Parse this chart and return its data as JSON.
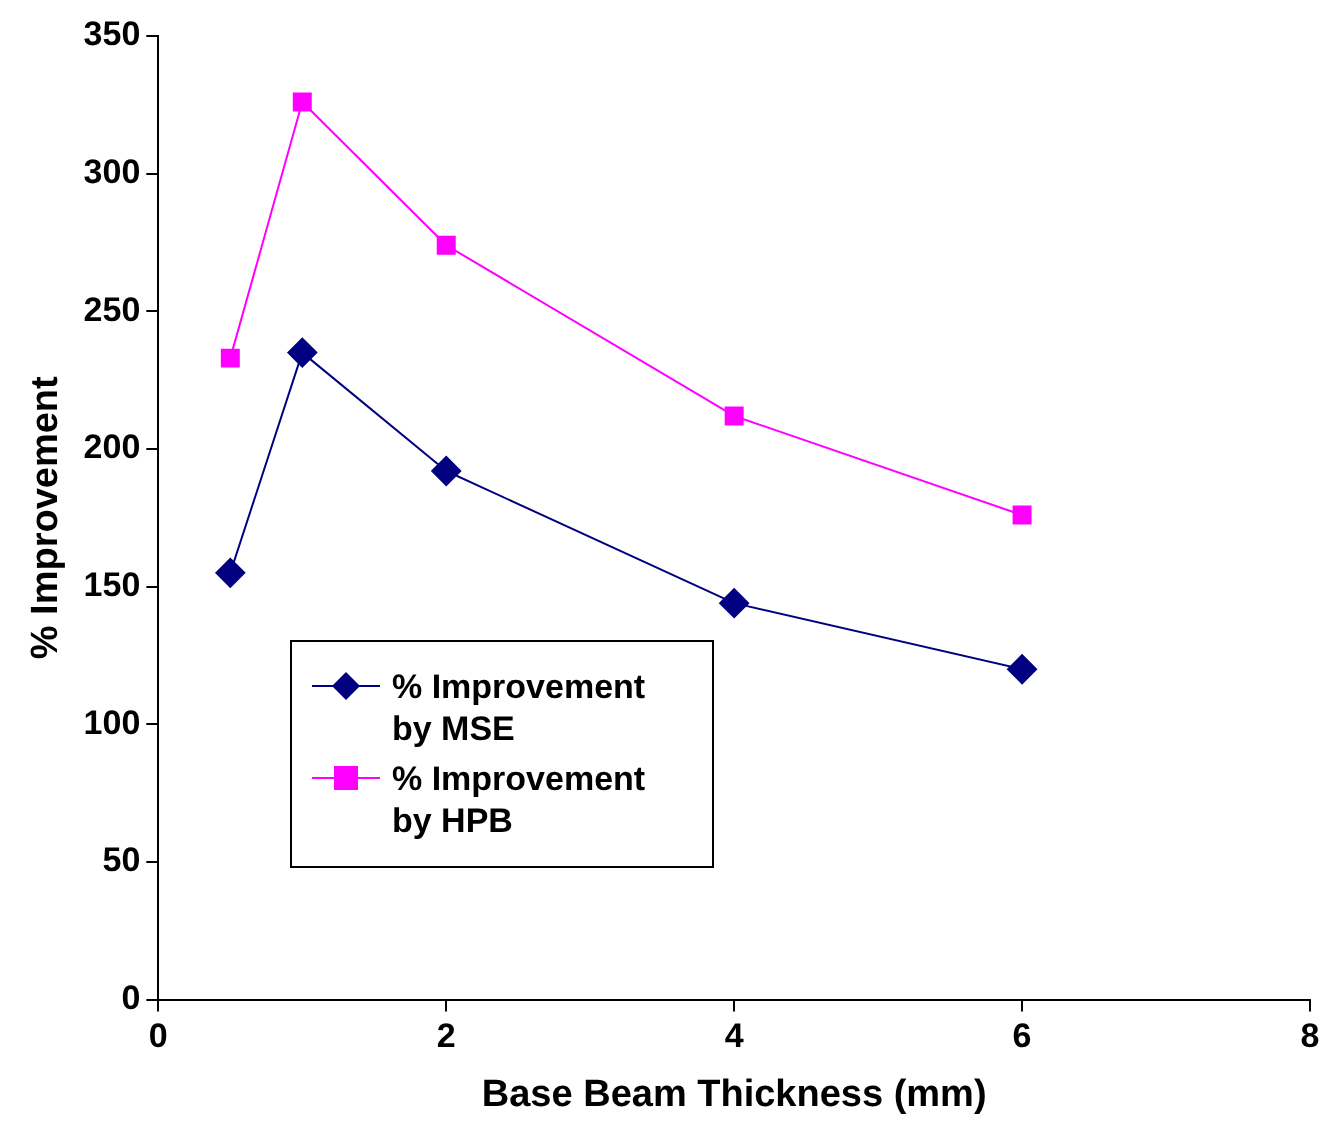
{
  "chart_data": {
    "type": "line",
    "xlabel": "Base Beam Thickness (mm)",
    "ylabel": "% Improvement",
    "x": [
      0.5,
      1,
      2,
      4,
      6
    ],
    "series": [
      {
        "name": "% Improvement by MSE",
        "color": "#000080",
        "marker": "diamond",
        "values": [
          155,
          235,
          192,
          144,
          120
        ]
      },
      {
        "name": "% Improvement by HPB",
        "color": "#ff00ff",
        "marker": "square",
        "values": [
          233,
          326,
          274,
          212,
          176
        ]
      }
    ],
    "xlim": [
      0,
      8
    ],
    "xticks": [
      0,
      2,
      4,
      6,
      8
    ],
    "ylim": [
      0,
      350
    ],
    "yticks": [
      0,
      50,
      100,
      150,
      200,
      250,
      300,
      350
    ],
    "grid": false,
    "legend": "bottom left",
    "line_style": "solid"
  }
}
